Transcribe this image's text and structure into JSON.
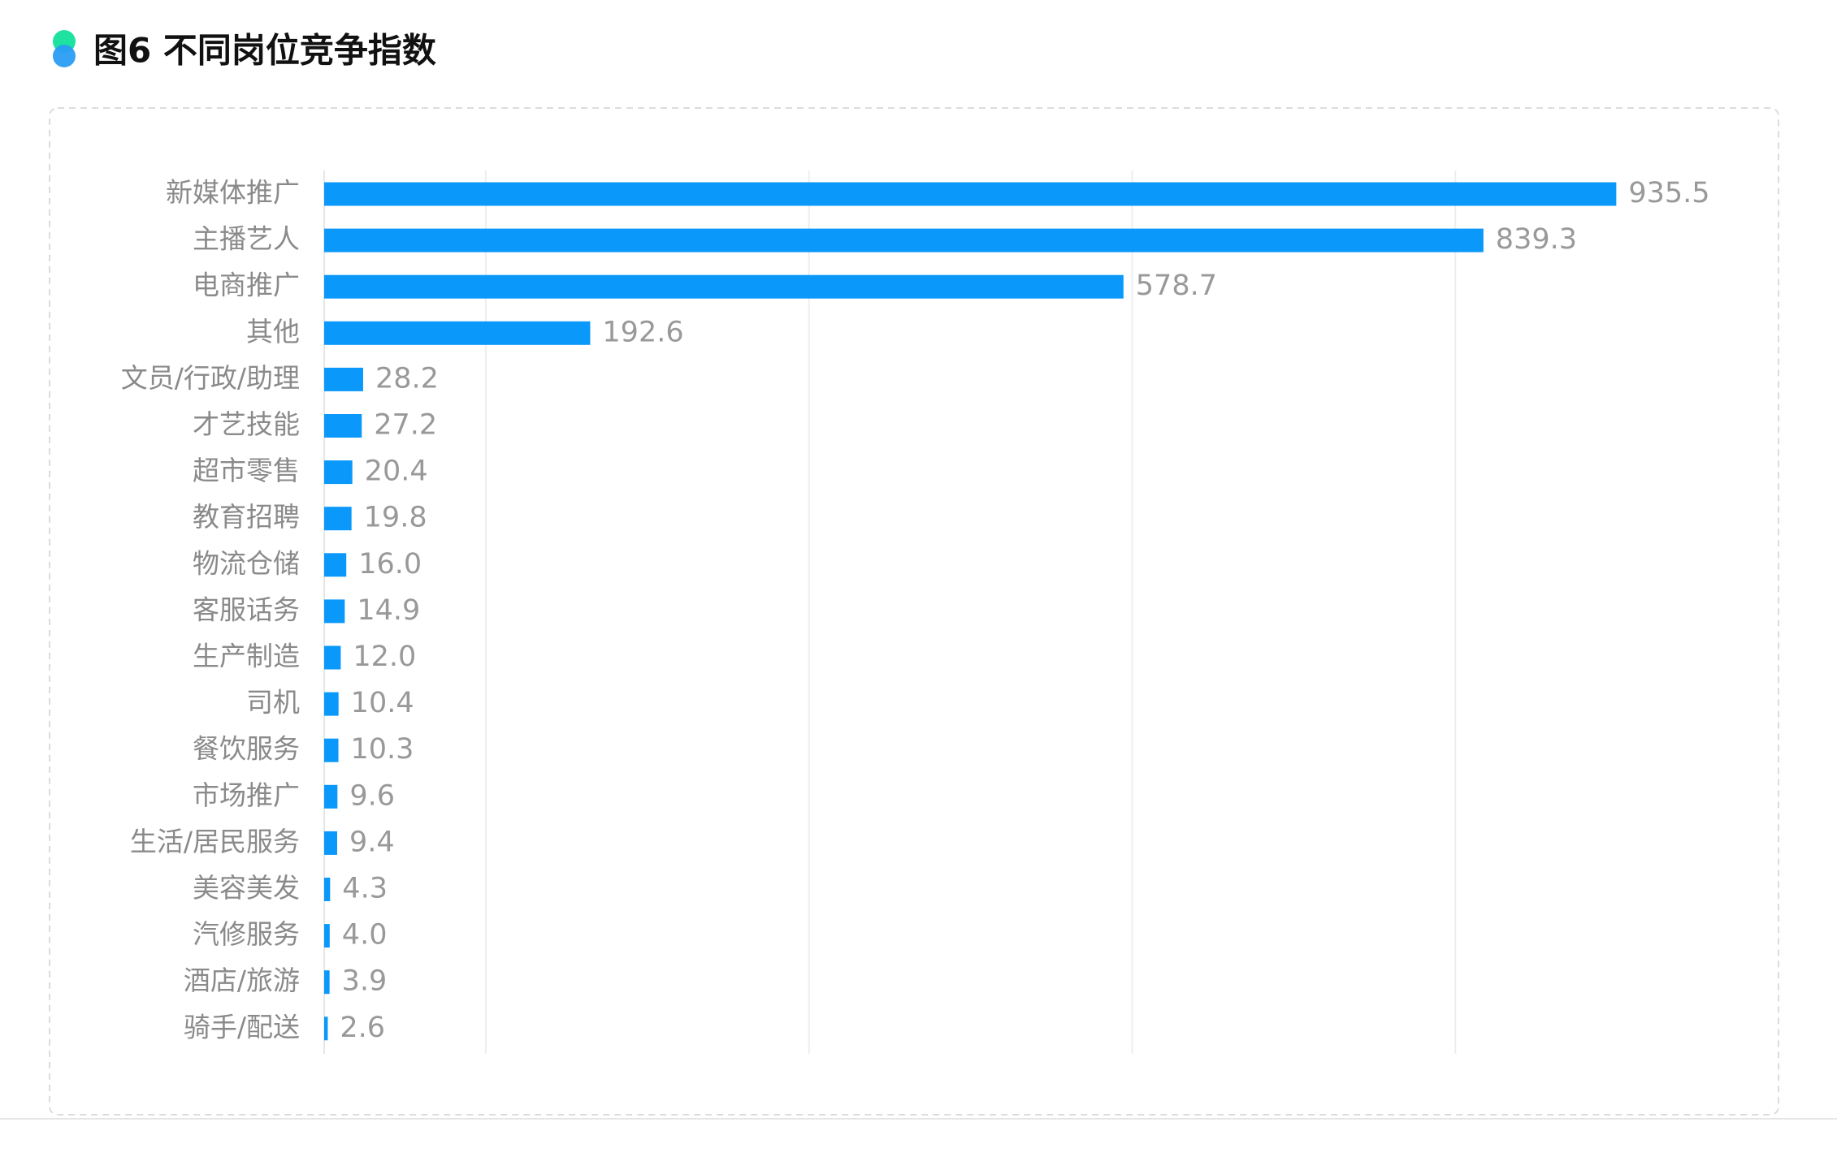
{
  "chart_data": {
    "type": "hbar",
    "title": "图6 不同岗位竞争指数",
    "categories": [
      "新媒体推广",
      "主播艺人",
      "电商推广",
      "其他",
      "文员/行政/助理",
      "才艺技能",
      "超市零售",
      "教育招聘",
      "物流仓储",
      "客服话务",
      "生产制造",
      "司机",
      "餐饮服务",
      "市场推广",
      "生活/居民服务",
      "美容美发",
      "汽修服务",
      "酒店/旅游",
      "骑手/配送"
    ],
    "values": [
      935.5,
      839.3,
      578.7,
      192.6,
      28.2,
      27.2,
      20.4,
      19.8,
      16.0,
      14.9,
      12.0,
      10.4,
      10.3,
      9.6,
      9.4,
      4.3,
      4.0,
      3.9,
      2.6
    ],
    "value_labels": [
      "935.5",
      "839.3",
      "578.7",
      "192.6",
      "28.2",
      "27.2",
      "20.4",
      "19.8",
      "16.0",
      "14.9",
      "12.0",
      "10.4",
      "10.3",
      "9.6",
      "9.4",
      "4.3",
      "4.0",
      "3.9",
      "2.6"
    ],
    "color": "#0a98fa",
    "xlim": [
      0,
      1000
    ],
    "xticks": [
      117,
      351,
      585,
      819
    ],
    "grid": true
  }
}
